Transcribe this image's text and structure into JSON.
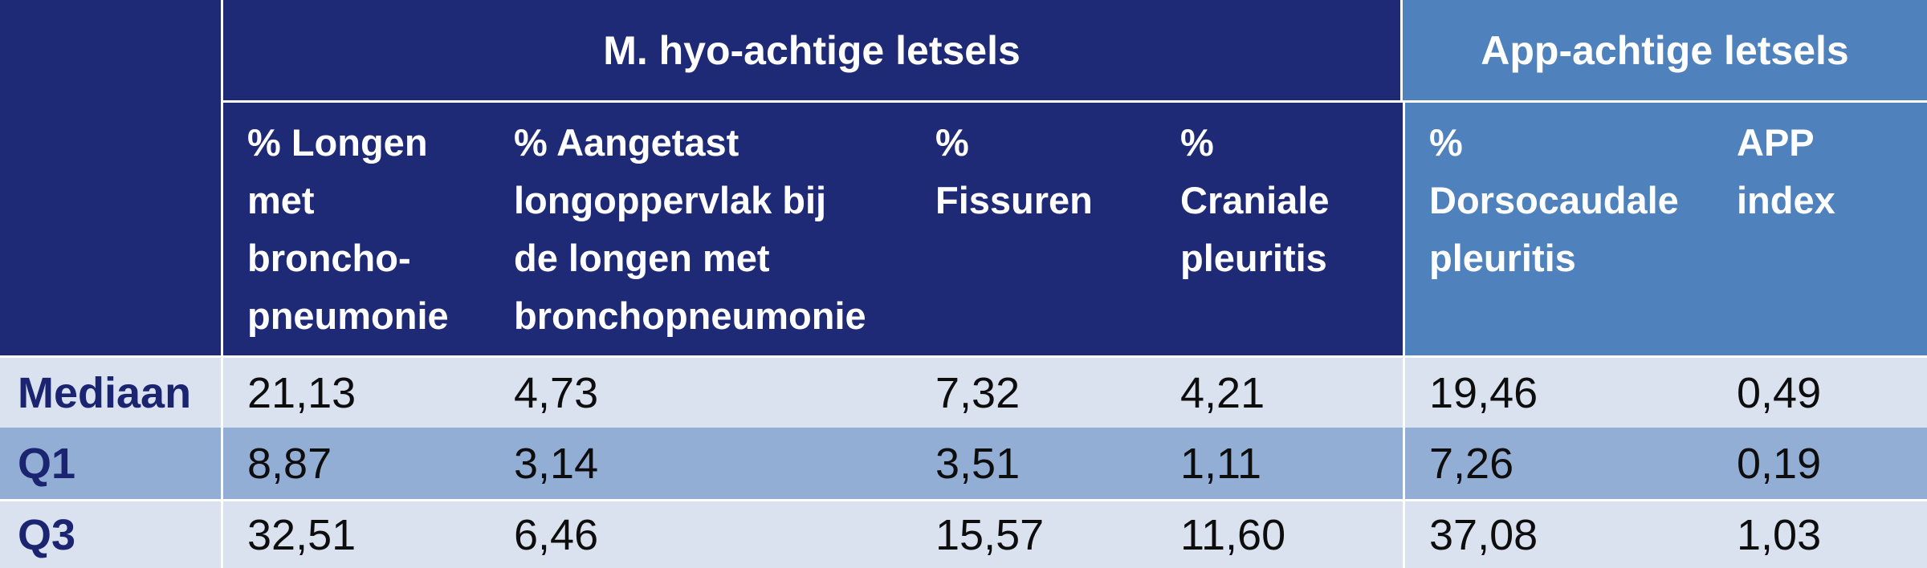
{
  "table": {
    "column_groups": [
      {
        "label": "M. hyo-achtige letsels",
        "columns_spanned": 4
      },
      {
        "label": "App-achtige letsels",
        "columns_spanned": 2
      }
    ],
    "column_headers": [
      "% Longen\nmet\nbroncho-\npneumonie",
      "% Aangetast\nlongoppervlak bij\nde longen met\nbronchopneumonie",
      "%\nFissuren",
      "%\nCraniale\npleuritis",
      "%\nDorsocaudale\npleuritis",
      "APP\nindex"
    ],
    "rows": [
      {
        "label": "Mediaan",
        "values": [
          "21,13",
          "4,73",
          "7,32",
          "4,21",
          "19,46",
          "0,49"
        ]
      },
      {
        "label": "Q1",
        "values": [
          "8,87",
          "3,14",
          "3,51",
          "1,11",
          "7,26",
          "0,19"
        ]
      },
      {
        "label": "Q3",
        "values": [
          "32,51",
          "6,46",
          "15,57",
          "11,60",
          "37,08",
          "1,03"
        ]
      }
    ],
    "colors": {
      "header_navy": "#1f2a76",
      "header_app_blue": "#4f81bd",
      "row_light": "#dae2f0",
      "row_medium": "#93aed4",
      "row_label_text": "#1a2470",
      "header_text": "#ffffff",
      "data_text": "#0d0d0d",
      "grid_line": "#ffffff"
    }
  },
  "chart_data": {
    "type": "table",
    "title": "",
    "column_groups": [
      "M. hyo-achtige letsels",
      "App-achtige letsels"
    ],
    "columns": [
      "% Longen met broncho-pneumonie",
      "% Aangetast longoppervlak bij de longen met bronchopneumonie",
      "% Fissuren",
      "% Craniale pleuritis",
      "% Dorsocaudale pleuritis",
      "APP index"
    ],
    "rows": [
      {
        "label": "Mediaan",
        "values": [
          21.13,
          4.73,
          7.32,
          4.21,
          19.46,
          0.49
        ]
      },
      {
        "label": "Q1",
        "values": [
          8.87,
          3.14,
          3.51,
          1.11,
          7.26,
          0.19
        ]
      },
      {
        "label": "Q3",
        "values": [
          32.51,
          6.46,
          15.57,
          11.6,
          37.08,
          1.03
        ]
      }
    ]
  }
}
